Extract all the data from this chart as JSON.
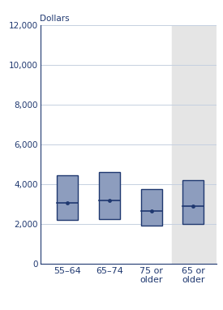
{
  "title": "Dollars",
  "ylim": [
    0,
    12000
  ],
  "yticks": [
    0,
    2000,
    4000,
    6000,
    8000,
    10000,
    12000
  ],
  "categories": [
    "55–64",
    "65–74",
    "75 or\nolder",
    "65 or\nolder"
  ],
  "boxes": [
    {
      "q1": 2200,
      "median": 3050,
      "q3": 4450,
      "mean": 3050
    },
    {
      "q1": 2250,
      "median": 3150,
      "q3": 4600,
      "mean": 3150
    },
    {
      "q1": 1900,
      "median": 2650,
      "q3": 3750,
      "mean": 2650
    },
    {
      "q1": 2000,
      "median": 2900,
      "q3": 4200,
      "mean": 2900
    }
  ],
  "box_facecolor": "#8d9dbe",
  "box_edgecolor": "#1f3870",
  "median_line_color": "#1f3870",
  "mean_marker_color": "#1f3870",
  "grid_color": "#c5d0e0",
  "bg_color_last": "#e5e5e5",
  "fig_bg": "#ffffff",
  "title_color": "#1f3870",
  "tick_color": "#1f3870",
  "figsize": [
    2.75,
    3.82
  ],
  "dpi": 100
}
